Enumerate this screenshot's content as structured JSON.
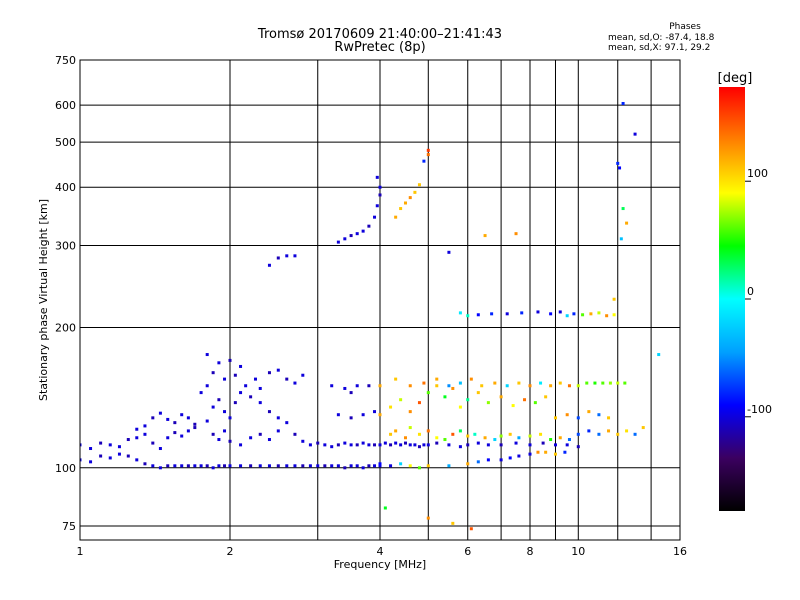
{
  "chart_data": {
    "type": "scatter",
    "title": "Tromsø 20170609 21:40:00–21:41:43",
    "subtitle": "RwPretec (8p)",
    "xlabel": "Frequency [MHz]",
    "ylabel": "Stationary phase Virtual Height [km]",
    "x_scale": "log",
    "y_scale": "log",
    "xlim": [
      1,
      16
    ],
    "ylim": [
      70,
      750
    ],
    "x_ticks": [
      1,
      2,
      4,
      6,
      8,
      10,
      16
    ],
    "x_minor": [
      3,
      5,
      7,
      9,
      12,
      14
    ],
    "y_ticks": [
      75,
      100,
      200,
      300,
      400,
      500,
      600,
      750
    ],
    "grid": true,
    "colorbar": {
      "label": "[deg]",
      "range": [
        -180,
        180
      ],
      "ticks": [
        100,
        0,
        -100
      ],
      "colors": [
        "#000000",
        "#3b0060",
        "#0000ff",
        "#00a0ff",
        "#00ffff",
        "#00ff00",
        "#ffff00",
        "#ff8000",
        "#ff0000"
      ]
    },
    "phases": {
      "heading": "Phases",
      "o_mode": "mean, sd,O: -87.4, 18.8",
      "x_mode": "mean, sd,X:  97.1, 29.2"
    },
    "points": [
      [
        1.0,
        104,
        -100
      ],
      [
        1.05,
        103,
        -100
      ],
      [
        1.1,
        106,
        -110
      ],
      [
        1.15,
        105,
        -100
      ],
      [
        1.2,
        107,
        -100
      ],
      [
        1.25,
        106,
        -110
      ],
      [
        1.3,
        104,
        -100
      ],
      [
        1.35,
        102,
        -110
      ],
      [
        1.4,
        101,
        -100
      ],
      [
        1.45,
        100,
        -100
      ],
      [
        1.5,
        101,
        -110
      ],
      [
        1.55,
        101,
        -100
      ],
      [
        1.6,
        101,
        -100
      ],
      [
        1.65,
        101,
        -110
      ],
      [
        1.7,
        101,
        -100
      ],
      [
        1.75,
        101,
        -100
      ],
      [
        1.8,
        101,
        -110
      ],
      [
        1.85,
        100,
        -100
      ],
      [
        1.9,
        101,
        -100
      ],
      [
        1.95,
        101,
        -110
      ],
      [
        2.0,
        101,
        -100
      ],
      [
        2.1,
        101,
        -100
      ],
      [
        2.2,
        101,
        -110
      ],
      [
        2.3,
        101,
        -100
      ],
      [
        2.4,
        101,
        -100
      ],
      [
        2.5,
        101,
        -110
      ],
      [
        2.6,
        101,
        -100
      ],
      [
        2.7,
        101,
        -100
      ],
      [
        2.8,
        101,
        -110
      ],
      [
        2.9,
        101,
        -100
      ],
      [
        3.0,
        101,
        -100
      ],
      [
        3.1,
        101,
        -110
      ],
      [
        3.2,
        101,
        -100
      ],
      [
        3.3,
        101,
        -100
      ],
      [
        3.4,
        100,
        -110
      ],
      [
        3.5,
        101,
        -100
      ],
      [
        3.6,
        101,
        -100
      ],
      [
        3.7,
        100,
        -100
      ],
      [
        3.8,
        101,
        -110
      ],
      [
        3.9,
        101,
        -100
      ],
      [
        4.0,
        101,
        -100
      ],
      [
        1.0,
        112,
        -100
      ],
      [
        1.05,
        110,
        -100
      ],
      [
        1.1,
        113,
        -110
      ],
      [
        1.15,
        112,
        -100
      ],
      [
        1.2,
        111,
        -100
      ],
      [
        1.25,
        115,
        -110
      ],
      [
        1.3,
        116,
        -100
      ],
      [
        1.35,
        118,
        -100
      ],
      [
        1.4,
        113,
        -110
      ],
      [
        1.45,
        110,
        -100
      ],
      [
        1.5,
        116,
        -100
      ],
      [
        1.55,
        119,
        -110
      ],
      [
        1.6,
        117,
        -100
      ],
      [
        1.65,
        120,
        -100
      ],
      [
        1.7,
        122,
        -110
      ],
      [
        1.3,
        121,
        -100
      ],
      [
        1.35,
        123,
        -100
      ],
      [
        1.4,
        128,
        -110
      ],
      [
        1.45,
        131,
        -100
      ],
      [
        1.5,
        127,
        -100
      ],
      [
        1.55,
        125,
        -110
      ],
      [
        1.6,
        130,
        -100
      ],
      [
        1.65,
        128,
        -100
      ],
      [
        1.7,
        124,
        -110
      ],
      [
        1.8,
        126,
        -100
      ],
      [
        1.85,
        135,
        -100
      ],
      [
        1.9,
        140,
        -110
      ],
      [
        1.95,
        132,
        -100
      ],
      [
        2.0,
        128,
        -100
      ],
      [
        2.05,
        138,
        -110
      ],
      [
        2.1,
        145,
        -100
      ],
      [
        2.15,
        150,
        -100
      ],
      [
        2.2,
        142,
        -110
      ],
      [
        2.25,
        155,
        -100
      ],
      [
        2.3,
        148,
        -100
      ],
      [
        1.85,
        160,
        -110
      ],
      [
        1.8,
        175,
        -100
      ],
      [
        1.9,
        168,
        -100
      ],
      [
        2.0,
        170,
        -110
      ],
      [
        2.1,
        165,
        -100
      ],
      [
        1.95,
        155,
        -100
      ],
      [
        2.05,
        158,
        -110
      ],
      [
        1.75,
        145,
        -100
      ],
      [
        1.8,
        150,
        -100
      ],
      [
        1.85,
        118,
        -110
      ],
      [
        1.9,
        115,
        -100
      ],
      [
        1.95,
        120,
        -100
      ],
      [
        2.0,
        114,
        -110
      ],
      [
        2.1,
        112,
        -100
      ],
      [
        2.2,
        116,
        -100
      ],
      [
        2.3,
        118,
        -110
      ],
      [
        2.4,
        115,
        -100
      ],
      [
        2.5,
        120,
        -100
      ],
      [
        2.6,
        155,
        -110
      ],
      [
        2.7,
        152,
        -100
      ],
      [
        2.8,
        158,
        -100
      ],
      [
        2.4,
        160,
        -110
      ],
      [
        2.5,
        162,
        -100
      ],
      [
        2.3,
        138,
        -100
      ],
      [
        2.4,
        132,
        -110
      ],
      [
        2.5,
        128,
        -100
      ],
      [
        2.6,
        125,
        -100
      ],
      [
        2.7,
        118,
        -110
      ],
      [
        2.8,
        114,
        -100
      ],
      [
        2.9,
        112,
        -100
      ],
      [
        3.0,
        113,
        -110
      ],
      [
        3.1,
        112,
        -100
      ],
      [
        3.2,
        111,
        -100
      ],
      [
        3.3,
        112,
        -110
      ],
      [
        3.4,
        113,
        -100
      ],
      [
        3.5,
        112,
        -100
      ],
      [
        3.6,
        112,
        -110
      ],
      [
        3.7,
        113,
        -100
      ],
      [
        3.8,
        112,
        -100
      ],
      [
        3.9,
        112,
        -110
      ],
      [
        3.2,
        150,
        -100
      ],
      [
        3.4,
        148,
        -100
      ],
      [
        3.5,
        145,
        -110
      ],
      [
        3.6,
        150,
        -100
      ],
      [
        3.3,
        130,
        -100
      ],
      [
        3.5,
        128,
        -110
      ],
      [
        3.7,
        130,
        -100
      ],
      [
        3.9,
        132,
        -100
      ],
      [
        3.8,
        150,
        -110
      ],
      [
        3.3,
        305,
        -100
      ],
      [
        3.4,
        310,
        -100
      ],
      [
        3.5,
        315,
        -110
      ],
      [
        3.6,
        318,
        -100
      ],
      [
        3.7,
        322,
        -100
      ],
      [
        3.8,
        330,
        -110
      ],
      [
        3.9,
        345,
        -100
      ],
      [
        3.95,
        365,
        -100
      ],
      [
        4.0,
        385,
        -110
      ],
      [
        4.0,
        400,
        -100
      ],
      [
        3.95,
        420,
        -100
      ],
      [
        2.4,
        272,
        -100
      ],
      [
        2.5,
        282,
        -110
      ],
      [
        2.6,
        285,
        -100
      ],
      [
        2.7,
        285,
        -100
      ],
      [
        4.0,
        112,
        -100
      ],
      [
        4.1,
        113,
        -100
      ],
      [
        4.2,
        112,
        -110
      ],
      [
        4.3,
        113,
        -100
      ],
      [
        4.4,
        112,
        -100
      ],
      [
        4.5,
        113,
        -110
      ],
      [
        4.6,
        112,
        -100
      ],
      [
        4.7,
        112,
        -100
      ],
      [
        4.8,
        111,
        -110
      ],
      [
        4.9,
        112,
        -100
      ],
      [
        5.0,
        112,
        -100
      ],
      [
        5.2,
        113,
        -110
      ],
      [
        5.5,
        112,
        -100
      ],
      [
        5.8,
        111,
        -100
      ],
      [
        6.0,
        112,
        -110
      ],
      [
        6.3,
        113,
        -100
      ],
      [
        6.6,
        112,
        -100
      ],
      [
        7.0,
        112,
        -110
      ],
      [
        7.5,
        113,
        -100
      ],
      [
        8.0,
        112,
        -100
      ],
      [
        8.5,
        113,
        -110
      ],
      [
        9.0,
        112,
        -100
      ],
      [
        9.5,
        112,
        -100
      ],
      [
        10.0,
        111,
        -110
      ],
      [
        4.2,
        118,
        110
      ],
      [
        4.3,
        120,
        120
      ],
      [
        4.5,
        116,
        130
      ],
      [
        4.6,
        122,
        80
      ],
      [
        4.8,
        118,
        100
      ],
      [
        5.0,
        120,
        140
      ],
      [
        5.2,
        116,
        90
      ],
      [
        5.4,
        115,
        60
      ],
      [
        5.6,
        118,
        150
      ],
      [
        5.8,
        120,
        30
      ],
      [
        6.0,
        117,
        110
      ],
      [
        6.2,
        118,
        10
      ],
      [
        6.5,
        116,
        120
      ],
      [
        6.8,
        115,
        -20
      ],
      [
        7.0,
        117,
        70
      ],
      [
        7.3,
        118,
        110
      ],
      [
        7.6,
        116,
        -40
      ],
      [
        8.0,
        117,
        80
      ],
      [
        8.4,
        118,
        100
      ],
      [
        8.8,
        115,
        50
      ],
      [
        9.2,
        116,
        120
      ],
      [
        9.6,
        115,
        -60
      ],
      [
        4.0,
        130,
        120
      ],
      [
        4.2,
        135,
        100
      ],
      [
        4.4,
        140,
        80
      ],
      [
        4.6,
        132,
        130
      ],
      [
        4.8,
        138,
        150
      ],
      [
        5.0,
        145,
        60
      ],
      [
        5.2,
        150,
        110
      ],
      [
        5.4,
        142,
        40
      ],
      [
        5.6,
        148,
        130
      ],
      [
        5.8,
        135,
        90
      ],
      [
        6.0,
        140,
        20
      ],
      [
        6.3,
        145,
        110
      ],
      [
        6.6,
        138,
        70
      ],
      [
        7.0,
        142,
        120
      ],
      [
        7.4,
        136,
        90
      ],
      [
        7.8,
        140,
        140
      ],
      [
        8.2,
        138,
        60
      ],
      [
        8.6,
        142,
        110
      ],
      [
        4.0,
        150,
        120
      ],
      [
        4.3,
        155,
        110
      ],
      [
        4.6,
        150,
        130
      ],
      [
        4.9,
        152,
        140
      ],
      [
        5.2,
        155,
        120
      ],
      [
        5.5,
        150,
        -50
      ],
      [
        5.8,
        152,
        -30
      ],
      [
        6.1,
        155,
        130
      ],
      [
        6.4,
        150,
        110
      ],
      [
        6.8,
        152,
        120
      ],
      [
        7.2,
        150,
        -20
      ],
      [
        7.6,
        152,
        110
      ],
      [
        8.0,
        150,
        130
      ],
      [
        8.4,
        152,
        -10
      ],
      [
        8.8,
        150,
        120
      ],
      [
        9.2,
        152,
        110
      ],
      [
        9.6,
        150,
        140
      ],
      [
        10.0,
        150,
        80
      ],
      [
        10.4,
        152,
        60
      ],
      [
        10.8,
        152,
        50
      ],
      [
        11.2,
        152,
        60
      ],
      [
        11.6,
        152,
        70
      ],
      [
        12.0,
        152,
        80
      ],
      [
        12.4,
        152,
        60
      ],
      [
        9.0,
        128,
        110
      ],
      [
        9.5,
        130,
        130
      ],
      [
        10.0,
        128,
        -70
      ],
      [
        10.5,
        132,
        120
      ],
      [
        11.0,
        130,
        -60
      ],
      [
        11.5,
        128,
        110
      ],
      [
        10.0,
        118,
        -70
      ],
      [
        10.5,
        120,
        -80
      ],
      [
        11.0,
        118,
        -60
      ],
      [
        11.5,
        120,
        120
      ],
      [
        12.0,
        118,
        110
      ],
      [
        12.5,
        120,
        100
      ],
      [
        13.0,
        118,
        -60
      ],
      [
        13.5,
        122,
        110
      ],
      [
        14.5,
        175,
        -20
      ],
      [
        4.0,
        102,
        -90
      ],
      [
        4.2,
        101,
        -100
      ],
      [
        4.4,
        102,
        -20
      ],
      [
        4.6,
        101,
        90
      ],
      [
        4.8,
        100,
        60
      ],
      [
        5.0,
        101,
        110
      ],
      [
        5.5,
        101,
        -40
      ],
      [
        6.0,
        102,
        120
      ],
      [
        6.3,
        103,
        -60
      ],
      [
        6.6,
        104,
        -90
      ],
      [
        7.0,
        104,
        -100
      ],
      [
        7.3,
        105,
        -90
      ],
      [
        7.6,
        106,
        -100
      ],
      [
        8.0,
        107,
        -100
      ],
      [
        8.3,
        108,
        130
      ],
      [
        8.6,
        108,
        120
      ],
      [
        9.0,
        107,
        110
      ],
      [
        9.4,
        108,
        -80
      ],
      [
        4.1,
        82,
        40
      ],
      [
        5.0,
        78,
        130
      ],
      [
        5.6,
        76,
        110
      ],
      [
        6.1,
        74,
        150
      ],
      [
        4.3,
        345,
        120
      ],
      [
        4.4,
        360,
        110
      ],
      [
        4.5,
        370,
        120
      ],
      [
        4.6,
        380,
        130
      ],
      [
        4.7,
        390,
        110
      ],
      [
        4.8,
        405,
        110
      ],
      [
        4.9,
        455,
        -80
      ],
      [
        5.0,
        470,
        140
      ],
      [
        5.0,
        480,
        160
      ],
      [
        5.5,
        290,
        -100
      ],
      [
        5.8,
        215,
        -10
      ],
      [
        6.0,
        212,
        10
      ],
      [
        6.3,
        213,
        -90
      ],
      [
        6.7,
        214,
        -80
      ],
      [
        7.2,
        214,
        -100
      ],
      [
        7.7,
        215,
        -80
      ],
      [
        8.3,
        216,
        -100
      ],
      [
        8.8,
        214,
        -90
      ],
      [
        9.2,
        216,
        -100
      ],
      [
        9.5,
        212,
        -20
      ],
      [
        9.8,
        214,
        -80
      ],
      [
        10.2,
        213,
        60
      ],
      [
        10.6,
        214,
        120
      ],
      [
        11.0,
        215,
        80
      ],
      [
        11.4,
        212,
        130
      ],
      [
        11.8,
        213,
        90
      ],
      [
        6.5,
        315,
        120
      ],
      [
        7.5,
        318,
        130
      ],
      [
        12.5,
        335,
        120
      ],
      [
        12.3,
        360,
        30
      ],
      [
        12.2,
        310,
        -30
      ],
      [
        12.0,
        450,
        -80
      ],
      [
        12.1,
        440,
        -90
      ],
      [
        12.3,
        605,
        -80
      ],
      [
        13.0,
        520,
        -100
      ],
      [
        11.8,
        230,
        110
      ]
    ]
  }
}
